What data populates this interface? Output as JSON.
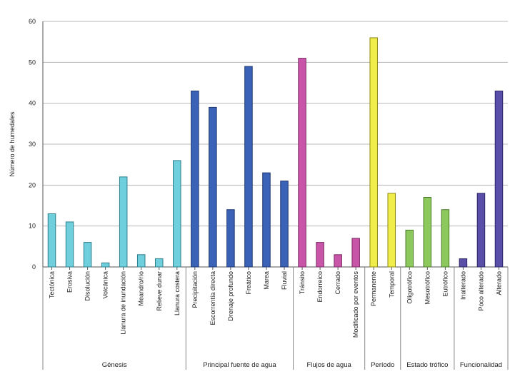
{
  "chart_data": {
    "type": "bar",
    "title": "",
    "xlabel": "",
    "ylabel": "Número de humedales",
    "ylim": [
      0,
      60
    ],
    "yticks": [
      0,
      10,
      20,
      30,
      40,
      50,
      60
    ],
    "grid": true,
    "groups": [
      {
        "name": "Génesis",
        "color": "#6fcfdc",
        "stroke": "#2e7f8c",
        "categories": [
          "Tectónica",
          "Erosiva",
          "Disolución",
          "Volcánica",
          "Llanura de inundación",
          "Meandro/río",
          "Relieve dunar",
          "Llanura costera"
        ],
        "values": [
          13,
          11,
          6,
          1,
          22,
          3,
          2,
          26
        ]
      },
      {
        "name": "Principal fuente de agua",
        "color": "#3a63b8",
        "stroke": "#1d3670",
        "categories": [
          "Precipitación",
          "Escorrentía directa",
          "Drenaje profundo",
          "Freático",
          "Marea",
          "Fluvial"
        ],
        "values": [
          43,
          39,
          14,
          49,
          23,
          21
        ]
      },
      {
        "name": "Flujos de agua",
        "color": "#c855a8",
        "stroke": "#7a2a64",
        "categories": [
          "Tránsito",
          "Endorreico",
          "Cerrado",
          "Modificado por eventos"
        ],
        "values": [
          51,
          6,
          3,
          7
        ]
      },
      {
        "name": "Período",
        "color": "#f0ec4a",
        "stroke": "#8d8a17",
        "categories": [
          "Permanente",
          "Temporal"
        ],
        "values": [
          56,
          18
        ]
      },
      {
        "name": "Estado trófico",
        "color": "#8cc85c",
        "stroke": "#4a7a2a",
        "categories": [
          "Oligotrófico",
          "Mesotrófico",
          "Eutrófico"
        ],
        "values": [
          9,
          17,
          14
        ]
      },
      {
        "name": "Funcionalidad",
        "color": "#5a4fa8",
        "stroke": "#2c2566",
        "categories": [
          "Inalterado",
          "Poco alterado",
          "Alterado"
        ],
        "values": [
          2,
          18,
          43
        ]
      }
    ]
  }
}
